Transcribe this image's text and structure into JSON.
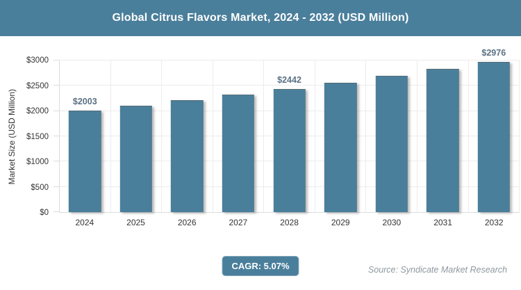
{
  "header": {
    "title": "Global Citrus Flavors Market, 2024 - 2032 (USD Million)"
  },
  "chart_data": {
    "type": "bar",
    "title": "Global Citrus Flavors Market, 2024 - 2032 (USD Million)",
    "xlabel": "",
    "ylabel": "Market Size (USD Million)",
    "ylim": [
      0,
      3000
    ],
    "ytick_step": 500,
    "ytick_labels": [
      "$0",
      "$500",
      "$1000",
      "$1500",
      "$2000",
      "$2500",
      "$3000"
    ],
    "categories": [
      "2024",
      "2025",
      "2026",
      "2027",
      "2028",
      "2029",
      "2030",
      "2031",
      "2032"
    ],
    "values": [
      2003,
      2105,
      2211,
      2323,
      2442,
      2565,
      2695,
      2832,
      2976
    ],
    "point_labels": [
      "$2003",
      "",
      "",
      "",
      "$2442",
      "",
      "",
      "",
      "$2976"
    ],
    "grid": true,
    "legend": false,
    "bar_color": "#4a7f9b"
  },
  "footer": {
    "cagr_label": "CAGR: 5.07%",
    "source": "Source: Syndicate Market Research"
  },
  "colors": {
    "accent": "#4a7f9b",
    "grid": "#ececec",
    "axis": "#d9dcde",
    "value_label": "#5a7084",
    "tick_text": "#333333",
    "source_text": "#8c98a0",
    "background": "#ffffff"
  }
}
